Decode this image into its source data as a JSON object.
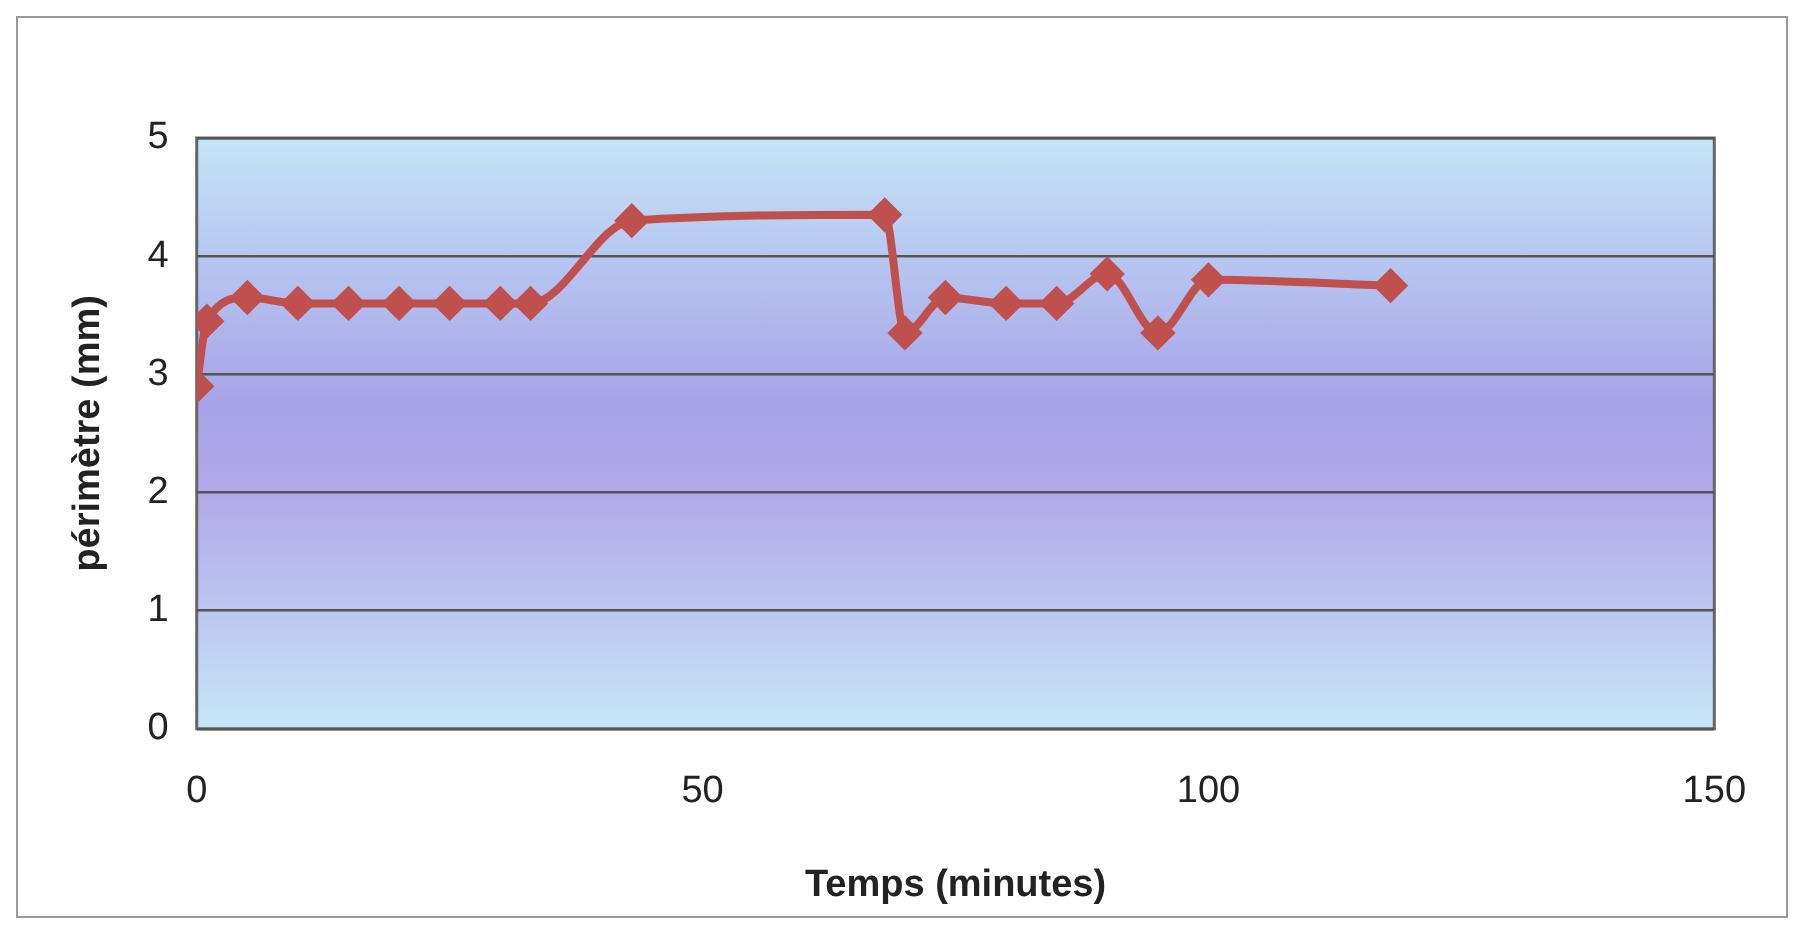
{
  "chart_data": {
    "type": "line",
    "xlabel": "Temps (minutes)",
    "ylabel": "périmètre (mm)",
    "x": [
      0,
      1,
      5,
      10,
      15,
      20,
      25,
      30,
      33,
      43,
      68,
      70,
      74,
      80,
      85,
      90,
      95,
      100,
      118
    ],
    "series": [
      {
        "color": "#c0504d",
        "values": [
          2.9,
          3.45,
          3.65,
          3.6,
          3.6,
          3.6,
          3.6,
          3.6,
          3.6,
          4.3,
          4.35,
          3.35,
          3.65,
          3.6,
          3.6,
          3.85,
          3.35,
          3.8,
          3.75
        ]
      }
    ],
    "xlim": [
      0,
      150
    ],
    "xticks": [
      0,
      50,
      100,
      150
    ],
    "ylim": [
      0,
      5
    ],
    "yticks": [
      0,
      1,
      2,
      3,
      4,
      5
    ],
    "grid": "y",
    "legend": false,
    "marker": "diamond",
    "line_style": "solid"
  }
}
